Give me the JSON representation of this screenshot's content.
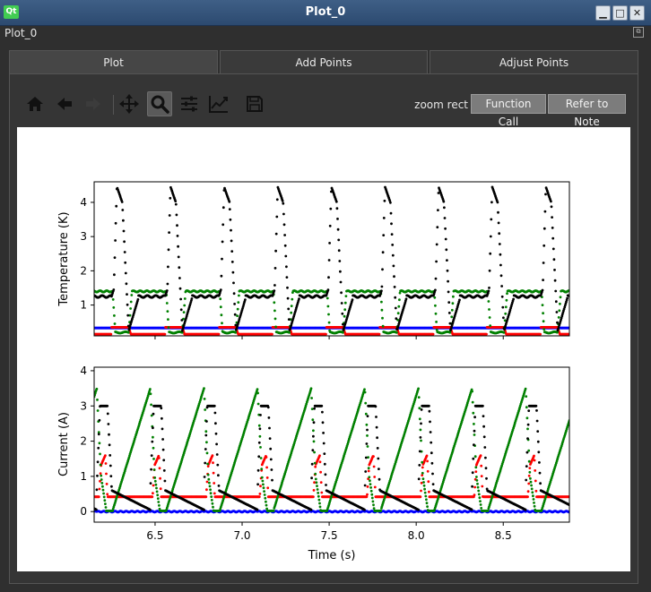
{
  "window": {
    "title": "Plot_0",
    "logo": "Qt",
    "menu_label": "Plot_0"
  },
  "tabs": [
    {
      "label": "Plot",
      "active": true
    },
    {
      "label": "Add Points",
      "active": false
    },
    {
      "label": "Adjust Points",
      "active": false
    }
  ],
  "toolbar": {
    "icons": [
      "home-icon",
      "back-arrow-icon",
      "forward-arrow-icon",
      "pan-icon",
      "zoom-icon",
      "subplots-config-icon",
      "edit-axis-icon",
      "save-icon"
    ],
    "mode_label": "zoom rect",
    "function_call_label": "Function Call",
    "refer_to_note_label": "Refer to Note"
  },
  "colors": {
    "series_black": "#000000",
    "series_green": "#008000",
    "series_red": "#ff0000",
    "series_blue": "#0000ff"
  },
  "chart_data": [
    {
      "type": "scatter",
      "ylabel": "Temperature (K)",
      "xlim": [
        6.15,
        8.88
      ],
      "ylim": [
        0.1,
        4.6
      ],
      "yticks": [
        "1",
        "2",
        "3",
        "4"
      ],
      "period_s": 0.308,
      "phase_s": 6.25,
      "series": [
        {
          "color": "black",
          "baseline": 1.25,
          "peak": 4.45,
          "peak_after": 4.0,
          "drop_to": 0.25
        },
        {
          "color": "green",
          "high": 1.4,
          "low": 0.2
        },
        {
          "color": "red",
          "low": 0.15,
          "high": 0.35
        },
        {
          "color": "blue",
          "level": 0.33
        }
      ]
    },
    {
      "type": "scatter",
      "xlabel": "Time (s)",
      "ylabel": "Current (A)",
      "xlim": [
        6.15,
        8.88
      ],
      "ylim": [
        -0.3,
        4.1
      ],
      "xticks": [
        "6.5",
        "7.0",
        "7.5",
        "8.0",
        "8.5"
      ],
      "yticks": [
        "0",
        "1",
        "2",
        "3",
        "4"
      ],
      "series": [
        {
          "color": "green",
          "ramp_start": 1.5,
          "ramp_end": 3.5,
          "min": 0.0
        },
        {
          "color": "black",
          "plateau": 3.0,
          "decay_start": 0.6
        },
        {
          "color": "red",
          "base": 0.42,
          "peak": 1.6
        },
        {
          "color": "blue",
          "level": 0.0
        }
      ]
    }
  ]
}
